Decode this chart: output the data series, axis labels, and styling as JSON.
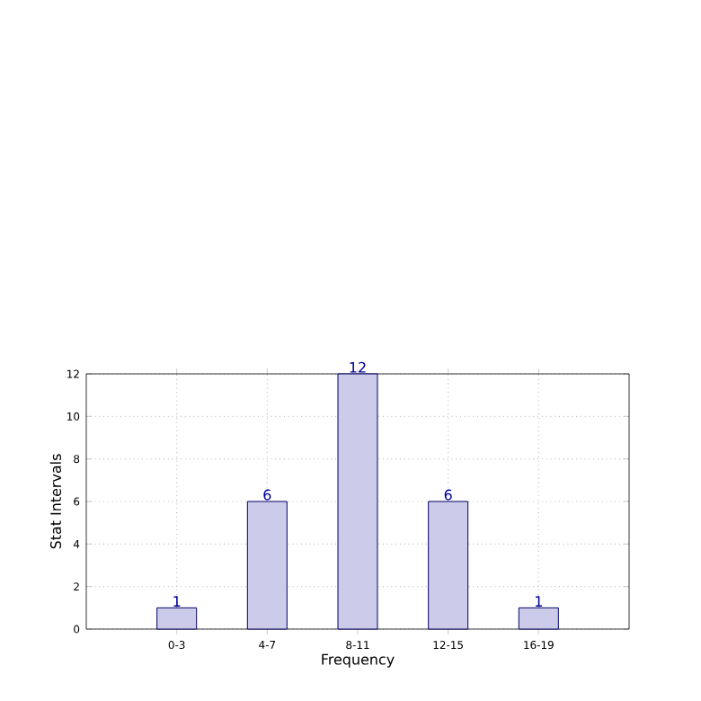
{
  "chart_data": {
    "type": "bar",
    "xlabel": "Frequency",
    "ylabel": "Stat Intervals",
    "categories": [
      "0-3",
      "4-7",
      "8-11",
      "12-15",
      "16-19"
    ],
    "values": [
      1,
      6,
      12,
      6,
      1
    ],
    "color": "#ccccea",
    "ylim": [
      0,
      12
    ],
    "yticks": [
      0,
      2,
      4,
      6,
      8,
      10,
      12
    ],
    "grid": true,
    "data_labels": true
  }
}
